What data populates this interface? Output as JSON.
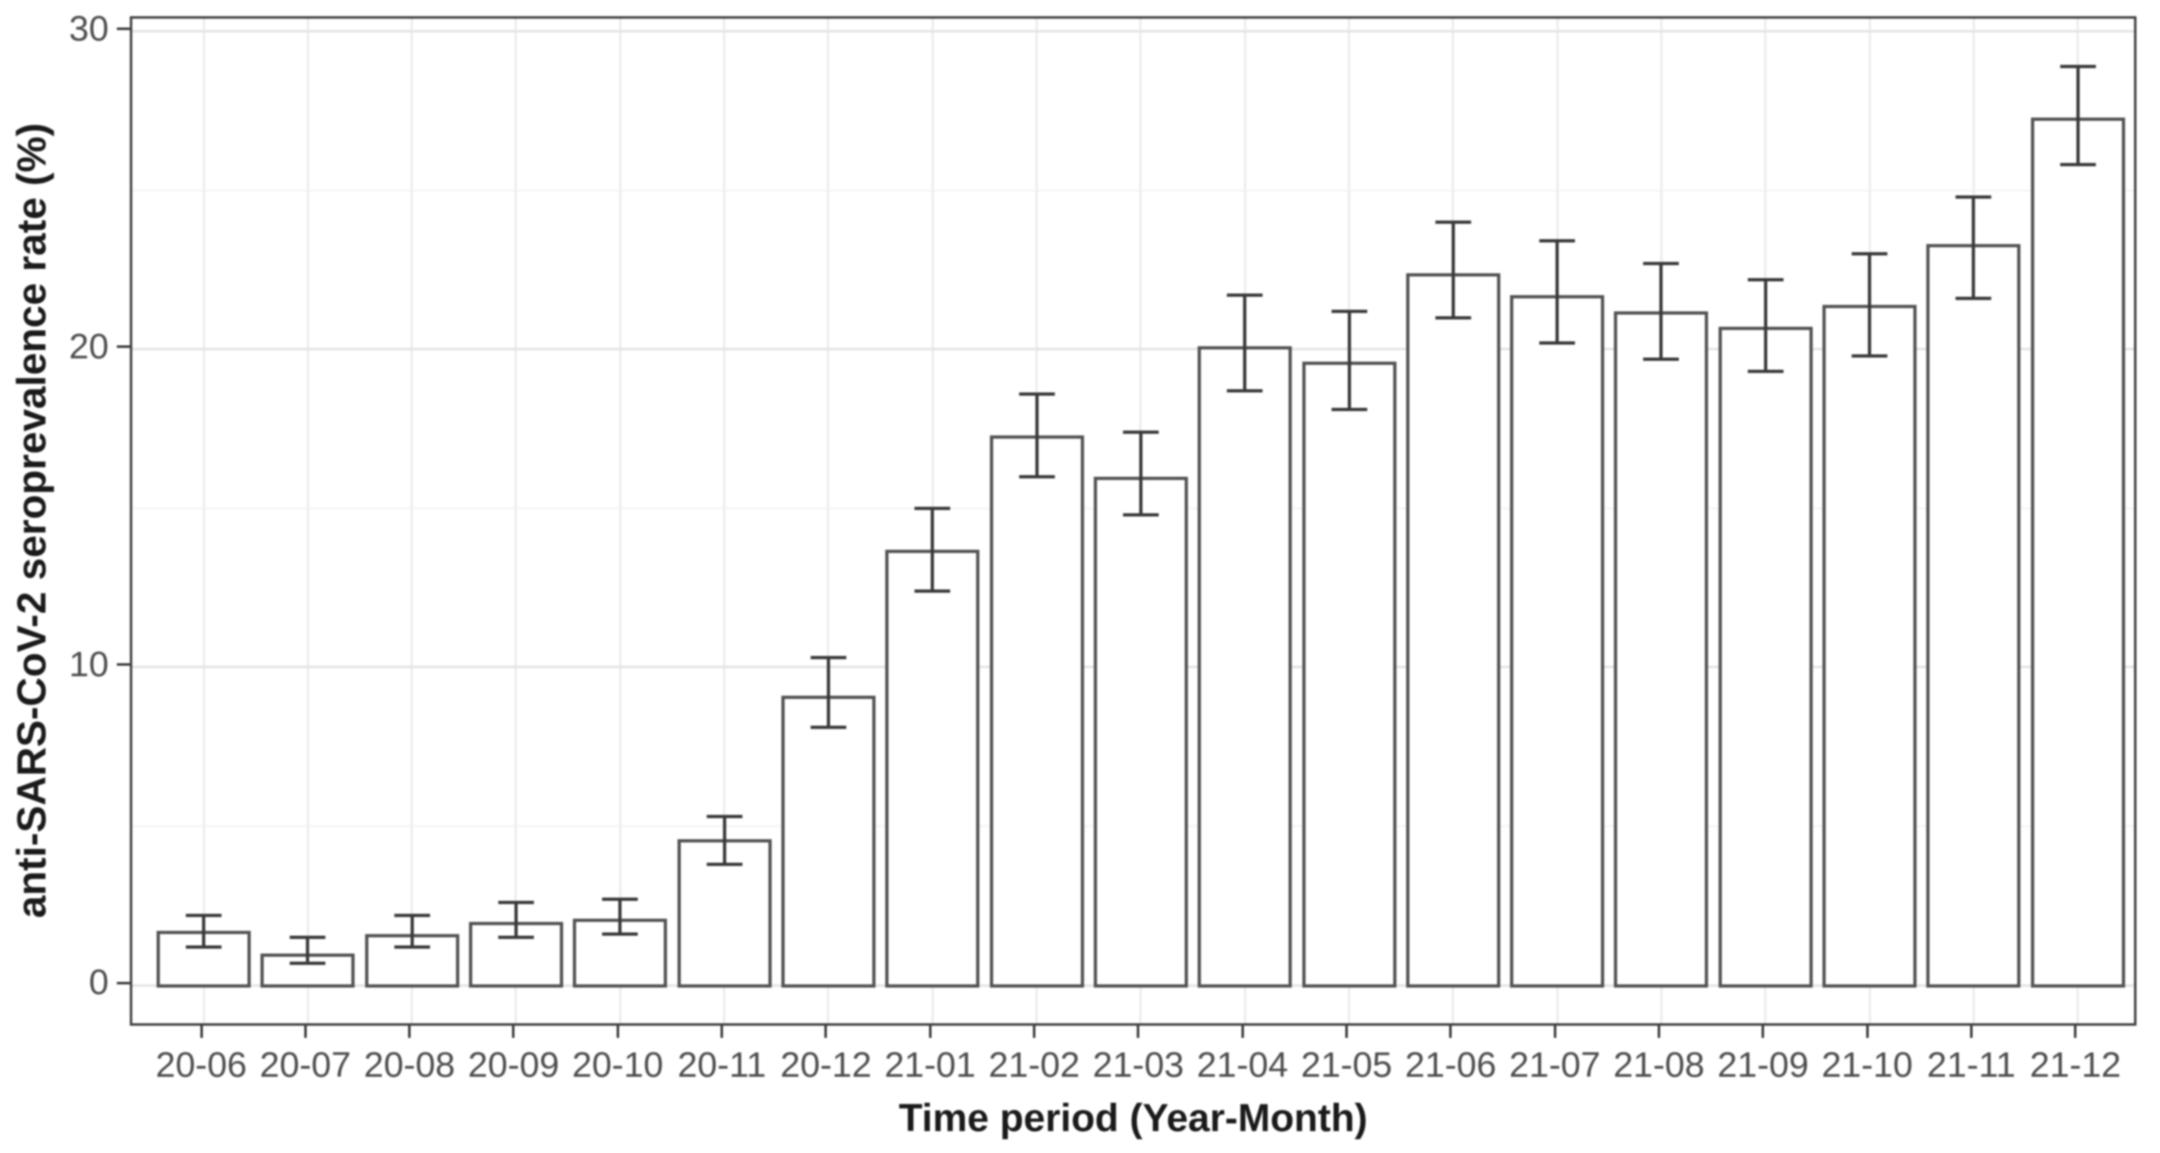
{
  "chart_data": {
    "type": "bar",
    "title": "",
    "xlabel": "Time period (Year-Month)",
    "ylabel": "anti-SARS-CoV-2 seroprevalence rate (%)",
    "categories": [
      "20-06",
      "20-07",
      "20-08",
      "20-09",
      "20-10",
      "20-11",
      "20-12",
      "21-01",
      "21-02",
      "21-03",
      "21-04",
      "21-05",
      "21-06",
      "21-07",
      "21-08",
      "21-09",
      "21-10",
      "21-11",
      "21-12"
    ],
    "values": [
      1.7,
      1.0,
      1.6,
      2.0,
      2.1,
      4.6,
      9.1,
      13.7,
      17.3,
      16.0,
      20.1,
      19.6,
      22.4,
      21.7,
      21.2,
      20.7,
      21.4,
      23.3,
      27.3
    ],
    "error_low": [
      1.2,
      0.7,
      1.2,
      1.5,
      1.6,
      3.8,
      8.1,
      12.4,
      16.0,
      14.8,
      18.7,
      18.1,
      21.0,
      20.2,
      19.7,
      19.3,
      19.8,
      21.6,
      25.8
    ],
    "error_high": [
      2.2,
      1.5,
      2.2,
      2.6,
      2.7,
      5.3,
      10.3,
      15.0,
      18.6,
      17.4,
      21.7,
      21.2,
      24.0,
      23.4,
      22.7,
      22.2,
      23.0,
      24.8,
      28.9
    ],
    "y_ticks": [
      0,
      10,
      20,
      30
    ],
    "y_minor_ticks": [
      5,
      15,
      25
    ],
    "ylim": [
      0,
      30
    ],
    "grid": "on",
    "legend": "none",
    "bar_fill": "#ffffff",
    "bar_border": "#525252",
    "error_color": "#383838",
    "panel_border_color": "#3e3e3e",
    "tick_text_color": "#4d4d4d"
  }
}
